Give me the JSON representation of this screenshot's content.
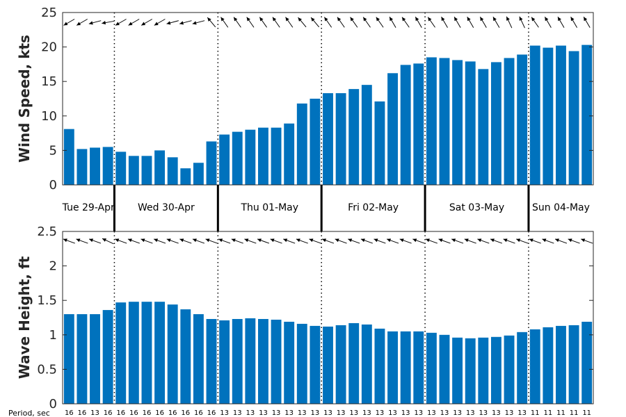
{
  "chart_data": [
    {
      "type": "bar",
      "ylabel": "Wind Speed, kts",
      "ylim": [
        0,
        25
      ],
      "yticks": [
        "0",
        "5",
        "10",
        "15",
        "20",
        "25"
      ],
      "color": "#0072BD",
      "values": [
        8.1,
        5.2,
        5.4,
        5.5,
        4.8,
        4.2,
        4.2,
        5.0,
        4.0,
        2.4,
        3.2,
        6.3,
        7.3,
        7.7,
        8.0,
        8.3,
        8.3,
        8.9,
        11.8,
        12.5,
        13.3,
        13.3,
        13.9,
        14.5,
        12.1,
        16.2,
        17.4,
        17.6,
        18.5,
        18.4,
        18.1,
        17.9,
        16.8,
        17.8,
        18.4,
        18.9,
        20.2,
        19.9,
        20.2,
        19.4,
        20.3
      ],
      "direction_deg": [
        60,
        60,
        75,
        80,
        60,
        60,
        60,
        60,
        75,
        75,
        75,
        140,
        145,
        145,
        145,
        145,
        145,
        145,
        140,
        140,
        145,
        145,
        145,
        145,
        145,
        150,
        145,
        150,
        145,
        150,
        150,
        150,
        150,
        150,
        155,
        155,
        145,
        150,
        150,
        150,
        150
      ],
      "grid": false
    },
    {
      "type": "bar",
      "ylabel": "Wave Height, ft",
      "ylim": [
        0,
        2.5
      ],
      "yticks": [
        "0",
        "0.5",
        "1",
        "1.5",
        "2",
        "2.5"
      ],
      "color": "#0072BD",
      "values": [
        1.3,
        1.3,
        1.3,
        1.36,
        1.47,
        1.48,
        1.48,
        1.48,
        1.44,
        1.37,
        1.3,
        1.23,
        1.21,
        1.23,
        1.24,
        1.23,
        1.22,
        1.19,
        1.16,
        1.13,
        1.12,
        1.14,
        1.17,
        1.15,
        1.09,
        1.05,
        1.05,
        1.05,
        1.03,
        1.0,
        0.96,
        0.95,
        0.96,
        0.97,
        0.99,
        1.04,
        1.08,
        1.11,
        1.13,
        1.14,
        1.19
      ],
      "direction_deg": [
        110,
        110,
        110,
        115,
        110,
        110,
        110,
        110,
        110,
        110,
        110,
        110,
        110,
        110,
        110,
        110,
        110,
        110,
        110,
        110,
        110,
        110,
        110,
        110,
        110,
        110,
        110,
        110,
        110,
        110,
        110,
        110,
        110,
        110,
        110,
        110,
        110,
        110,
        110,
        110,
        110
      ],
      "grid": false
    }
  ],
  "days": [
    {
      "label": "Tue 29-Apr",
      "start": 0,
      "end": 4
    },
    {
      "label": "Wed 30-Apr",
      "start": 4,
      "end": 12
    },
    {
      "label": "Thu 01-May",
      "start": 12,
      "end": 20
    },
    {
      "label": "Fri 02-May",
      "start": 20,
      "end": 28
    },
    {
      "label": "Sat 03-May",
      "start": 28,
      "end": 36
    },
    {
      "label": "Sun 04-May",
      "start": 36,
      "end": 41
    }
  ],
  "period_label": "Period, sec",
  "periods": [
    "16",
    "16",
    "13",
    "16",
    "16",
    "16",
    "16",
    "16",
    "16",
    "16",
    "16",
    "16",
    "13",
    "13",
    "13",
    "13",
    "13",
    "13",
    "13",
    "13",
    "13",
    "13",
    "13",
    "13",
    "13",
    "13",
    "13",
    "13",
    "13",
    "13",
    "13",
    "13",
    "13",
    "13",
    "13",
    "13",
    "11",
    "11",
    "11",
    "11",
    "11"
  ]
}
